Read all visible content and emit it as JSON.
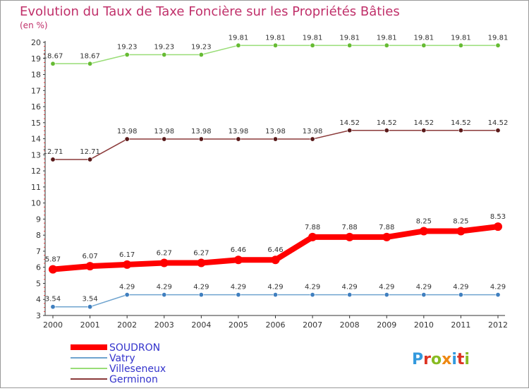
{
  "chart_data": {
    "type": "line",
    "title": "Evolution du Taux de Taxe Foncière sur les Propriétés Bâties",
    "subtitle": "(en %)",
    "categories": [
      "2000",
      "2001",
      "2002",
      "2003",
      "2004",
      "2005",
      "2006",
      "2007",
      "2008",
      "2009",
      "2010",
      "2011",
      "2012"
    ],
    "ylim": [
      3,
      20
    ],
    "yticks": [
      3,
      4,
      5,
      6,
      7,
      8,
      9,
      10,
      11,
      12,
      13,
      14,
      15,
      16,
      17,
      18,
      19,
      20
    ],
    "grid": false,
    "legend_position": "bottom-left",
    "series": [
      {
        "name": "SOUDRON",
        "color": "#ff0000",
        "point_color": "#ff0000",
        "label_color": "#333333",
        "legend_color": "#3333cc",
        "values": [
          5.87,
          6.07,
          6.17,
          6.27,
          6.27,
          6.46,
          6.46,
          7.88,
          7.88,
          7.88,
          8.25,
          8.25,
          8.53
        ],
        "labels": [
          "5.87",
          "6.07",
          "6.17",
          "6.27",
          "6.27",
          "6.46",
          "6.46",
          "7.88",
          "7.88",
          "7.88",
          "8.25",
          "8.25",
          "8.53"
        ]
      },
      {
        "name": "Vatry",
        "color": "#6fa4cf",
        "point_color": "#3f7fbf",
        "label_color": "#333333",
        "legend_color": "#3333cc",
        "values": [
          3.54,
          3.54,
          4.29,
          4.29,
          4.29,
          4.29,
          4.29,
          4.29,
          4.29,
          4.29,
          4.29,
          4.29,
          4.29
        ],
        "labels": [
          "3.54",
          "3.54",
          "4.29",
          "4.29",
          "4.29",
          "4.29",
          "4.29",
          "4.29",
          "4.29",
          "4.29",
          "4.29",
          "4.29",
          "4.29"
        ]
      },
      {
        "name": "Villeseneux",
        "color": "#99dd77",
        "point_color": "#66bb33",
        "label_color": "#333333",
        "legend_color": "#3333cc",
        "values": [
          18.67,
          18.67,
          19.23,
          19.23,
          19.23,
          19.81,
          19.81,
          19.81,
          19.81,
          19.81,
          19.81,
          19.81,
          19.81
        ],
        "labels": [
          "18.67",
          "18.67",
          "19.23",
          "19.23",
          "19.23",
          "19.81",
          "19.81",
          "19.81",
          "19.81",
          "19.81",
          "19.81",
          "19.81",
          "19.81"
        ]
      },
      {
        "name": "Germinon",
        "color": "#8b3a3a",
        "point_color": "#5a1a1a",
        "label_color": "#333333",
        "legend_color": "#3333cc",
        "values": [
          12.71,
          12.71,
          13.98,
          13.98,
          13.98,
          13.98,
          13.98,
          13.98,
          14.52,
          14.52,
          14.52,
          14.52,
          14.52
        ],
        "labels": [
          "12.71",
          "12.71",
          "13.98",
          "13.98",
          "13.98",
          "13.98",
          "13.98",
          "13.98",
          "14.52",
          "14.52",
          "14.52",
          "14.52",
          "14.52"
        ]
      }
    ]
  },
  "logo": {
    "letters": [
      {
        "ch": "P",
        "color": "#3399dd"
      },
      {
        "ch": "r",
        "color": "#dd3322"
      },
      {
        "ch": "o",
        "color": "#88bb22"
      },
      {
        "ch": "x",
        "color": "#ee8811"
      },
      {
        "ch": "i",
        "color": "#3399dd"
      },
      {
        "ch": "t",
        "color": "#dd3322"
      },
      {
        "ch": "i",
        "color": "#88bb22"
      }
    ]
  },
  "colors": {
    "background": "#ffffff",
    "axis": "#333333",
    "title": "#c0306a"
  }
}
